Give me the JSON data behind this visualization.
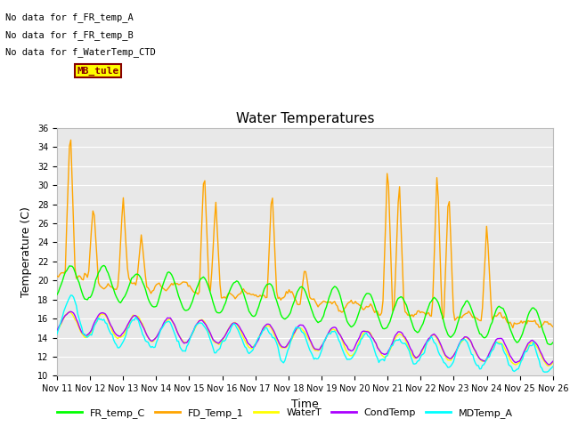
{
  "title": "Water Temperatures",
  "ylabel": "Temperature (C)",
  "xlabel": "Time",
  "ylim": [
    10,
    36
  ],
  "yticks": [
    10,
    12,
    14,
    16,
    18,
    20,
    22,
    24,
    26,
    28,
    30,
    32,
    34,
    36
  ],
  "x_labels": [
    "Nov 11",
    "Nov 12",
    "Nov 13",
    "Nov 14",
    "Nov 15",
    "Nov 16",
    "Nov 17",
    "Nov 18",
    "Nov 19",
    "Nov 20",
    "Nov 21",
    "Nov 22",
    "Nov 23",
    "Nov 24",
    "Nov 25",
    "Nov 26"
  ],
  "colors": {
    "FR_temp_C": "#00FF00",
    "FD_Temp_1": "#FFA500",
    "WaterT": "#FFFF00",
    "CondTemp": "#AA00FF",
    "MDTemp_A": "#00FFFF"
  },
  "no_data_text": [
    "No data for f_FR_temp_A",
    "No data for f_FR_temp_B",
    "No data for f_WaterTemp_CTD"
  ],
  "mb_tule_box": {
    "text": "MB_tule",
    "color": "#880000",
    "bgcolor": "#FFFF00"
  },
  "background_color": "#E8E8E8",
  "grid_color": "#FFFFFF",
  "fig_bg": "#FFFFFF",
  "title_fontsize": 11,
  "axis_fontsize": 9,
  "tick_fontsize": 7
}
